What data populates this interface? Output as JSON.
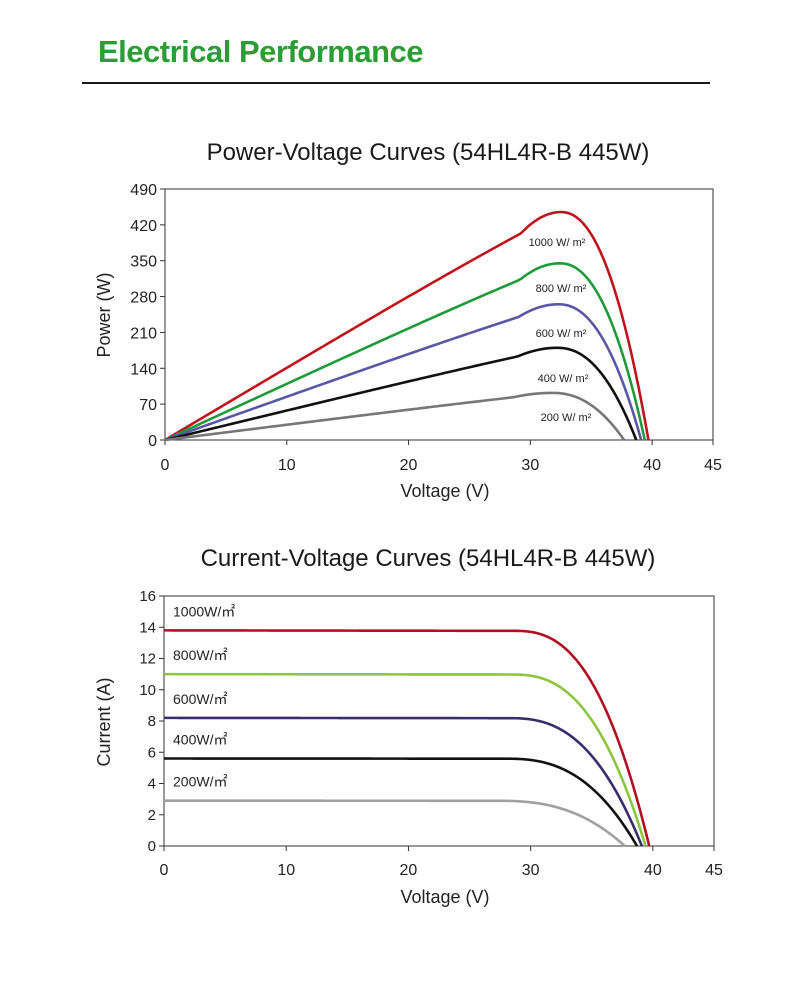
{
  "page": {
    "title": "Electrical Performance",
    "accent_color": "#2a9d35"
  },
  "chart_data": [
    {
      "type": "line",
      "title": "Power-Voltage Curves (54HL4R-B 445W)",
      "xlabel": "Voltage (V)",
      "ylabel": "Power (W)",
      "xlim": [
        0,
        45
      ],
      "ylim": [
        0,
        490
      ],
      "xticks": [
        "0",
        "10",
        "20",
        "30",
        "40",
        "45"
      ],
      "yticks": [
        "0",
        "70",
        "140",
        "210",
        "280",
        "350",
        "420",
        "490"
      ],
      "grid": false,
      "series": [
        {
          "name": "1000 W/ m²",
          "color": "#c0141c",
          "voc": 39.7,
          "vmp": 32.5,
          "pmax": 445
        },
        {
          "name": "800 W/ m²",
          "color": "#1f9a3a",
          "voc": 39.4,
          "vmp": 32.4,
          "pmax": 345
        },
        {
          "name": "600 W/ m²",
          "color": "#5a58a6",
          "voc": 39.1,
          "vmp": 32.3,
          "pmax": 265
        },
        {
          "name": "400 W/ m²",
          "color": "#111111",
          "voc": 38.7,
          "vmp": 32.2,
          "pmax": 180
        },
        {
          "name": "200 W/ m²",
          "color": "#777777",
          "voc": 37.7,
          "vmp": 31.8,
          "pmax": 92
        }
      ]
    },
    {
      "type": "line",
      "title": "Current-Voltage Curves (54HL4R-B 445W)",
      "xlabel": "Voltage (V)",
      "ylabel": "Current (A)",
      "xlim": [
        0,
        45
      ],
      "ylim": [
        0,
        16
      ],
      "xticks": [
        "0",
        "10",
        "20",
        "30",
        "40",
        "45"
      ],
      "yticks": [
        "0",
        "2",
        "4",
        "6",
        "8",
        "10",
        "12",
        "14",
        "16"
      ],
      "grid": false,
      "series": [
        {
          "name": "1000W/㎡",
          "color": "#b01020",
          "isc": 13.8,
          "voc": 39.7
        },
        {
          "name": "800W/㎡",
          "color": "#8cc63f",
          "isc": 11.0,
          "voc": 39.4
        },
        {
          "name": "600W/㎡",
          "color": "#3a2d6e",
          "isc": 8.2,
          "voc": 39.1
        },
        {
          "name": "400W/㎡",
          "color": "#111111",
          "isc": 5.6,
          "voc": 38.7
        },
        {
          "name": "200W/㎡",
          "color": "#a0a0a0",
          "isc": 2.9,
          "voc": 37.7
        }
      ]
    }
  ]
}
